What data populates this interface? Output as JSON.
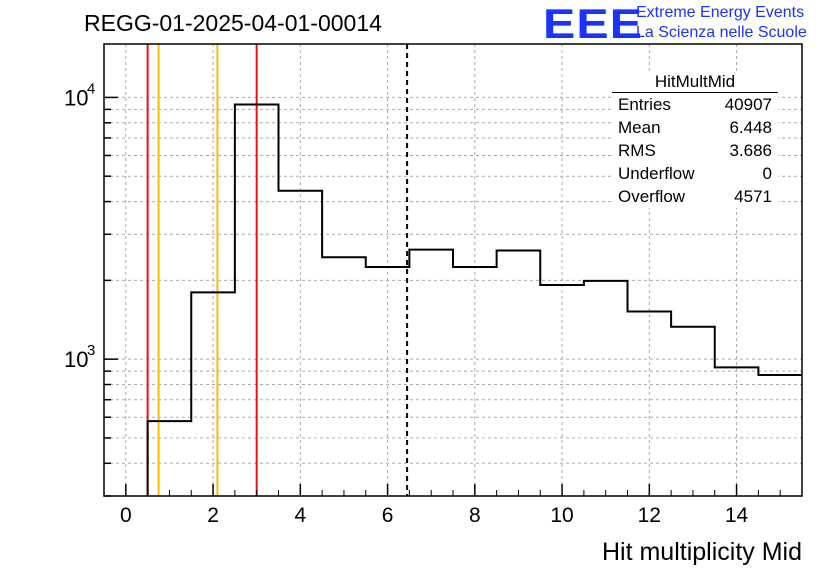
{
  "header": {
    "run_title": "REGG-01-2025-04-01-00014"
  },
  "logo": {
    "acronym": "EEE",
    "line1": "Extreme Energy Events",
    "line2": "La Scienza nelle Scuole",
    "color": "#1a33ff"
  },
  "stats_box": {
    "title": "HitMultMid",
    "entries_label": "Entries",
    "entries_value": "40907",
    "mean_label": "Mean",
    "mean_value": "6.448",
    "rms_label": "RMS",
    "rms_value": "3.686",
    "underflow_label": "Underflow",
    "underflow_value": "0",
    "overflow_label": "Overflow",
    "overflow_value": "4571"
  },
  "chart_data": {
    "type": "bar",
    "title": "REGG-01-2025-04-01-00014",
    "xlabel": "Hit multiplicity Mid",
    "ylabel": "",
    "xlim": [
      -0.5,
      15.5
    ],
    "ylim": [
      300,
      16000
    ],
    "yscale": "log",
    "grid": true,
    "bin_edges": [
      -0.5,
      0.5,
      1.5,
      2.5,
      3.5,
      4.5,
      5.5,
      6.5,
      7.5,
      8.5,
      9.5,
      10.5,
      11.5,
      12.5,
      13.5,
      14.5,
      15.5
    ],
    "values": [
      0,
      580,
      1800,
      9400,
      4400,
      2450,
      2250,
      2620,
      2250,
      2600,
      1920,
      1990,
      1520,
      1330,
      930,
      870
    ],
    "x_ticks": [
      0,
      2,
      4,
      6,
      8,
      10,
      12,
      14
    ],
    "x_tick_labels": [
      "0",
      "2",
      "4",
      "6",
      "8",
      "10",
      "12",
      "14"
    ],
    "y_major_ticks": [
      1000,
      10000
    ],
    "y_tick_labels": [
      {
        "base": "10",
        "exp": "3",
        "value": 1000
      },
      {
        "base": "10",
        "exp": "4",
        "value": 10000
      }
    ],
    "vertical_lines": [
      {
        "x": 0.5,
        "color": "#ee1111",
        "style": "solid"
      },
      {
        "x": 0.75,
        "color": "#ffbb00",
        "style": "solid"
      },
      {
        "x": 2.1,
        "color": "#ffbb00",
        "style": "solid"
      },
      {
        "x": 3.0,
        "color": "#ee1111",
        "style": "solid"
      },
      {
        "x": 6.448,
        "color": "#000000",
        "style": "dashed"
      }
    ]
  }
}
